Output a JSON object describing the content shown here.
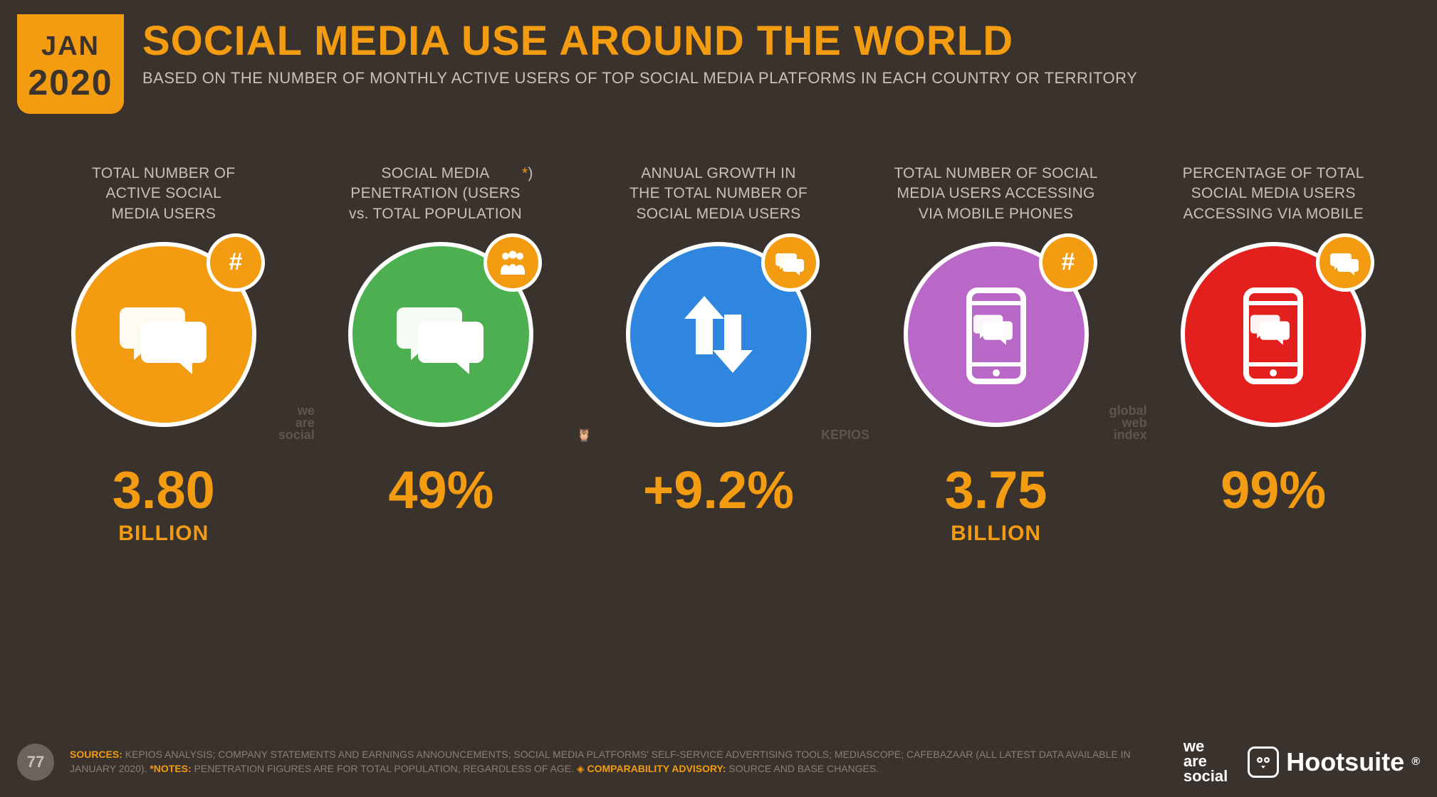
{
  "date_badge": {
    "month": "JAN",
    "year": "2020"
  },
  "header": {
    "title": "SOCIAL MEDIA USE AROUND THE WORLD",
    "subtitle": "BASED ON THE NUMBER OF MONTHLY ACTIVE USERS OF TOP SOCIAL MEDIA PLATFORMS IN EACH COUNTRY OR TERRITORY"
  },
  "colors": {
    "background": "#3a322d",
    "accent": "#f39c12",
    "text_light": "#c9c0b8",
    "circle_border": "#ffffff"
  },
  "stats": [
    {
      "label": "TOTAL NUMBER OF\nACTIVE SOCIAL\nMEDIA USERS",
      "circle_color": "#f39c12",
      "icon": "chat",
      "mini_icon": "hash",
      "watermark": "we\nare\nsocial",
      "value": "3.80",
      "unit": "BILLION"
    },
    {
      "label": "SOCIAL MEDIA\nPENETRATION (USERS\nvs. TOTAL POPULATION",
      "label_asterisk": "*",
      "label_suffix": ")",
      "circle_color": "#4caf50",
      "icon": "chat",
      "mini_icon": "people",
      "watermark": "🦉",
      "value": "49%",
      "unit": ""
    },
    {
      "label": "ANNUAL GROWTH IN\nTHE TOTAL NUMBER OF\nSOCIAL MEDIA USERS",
      "circle_color": "#2e86de",
      "icon": "arrows",
      "mini_icon": "chat-small",
      "watermark": "KEPIOS",
      "value": "+9.2%",
      "unit": ""
    },
    {
      "label": "TOTAL NUMBER OF SOCIAL\nMEDIA USERS ACCESSING\nVIA MOBILE PHONES",
      "circle_color": "#ba68c8",
      "icon": "phone",
      "mini_icon": "hash",
      "watermark": "global\nweb\nindex",
      "value": "3.75",
      "unit": "BILLION"
    },
    {
      "label": "PERCENTAGE OF TOTAL\nSOCIAL MEDIA USERS\nACCESSING VIA MOBILE",
      "circle_color": "#e4201f",
      "icon": "phone",
      "mini_icon": "chat-small",
      "watermark": "",
      "value": "99%",
      "unit": ""
    }
  ],
  "footer": {
    "page": "77",
    "sources_label": "SOURCES:",
    "sources_text": " KEPIOS ANALYSIS; COMPANY STATEMENTS AND EARNINGS ANNOUNCEMENTS; SOCIAL MEDIA PLATFORMS' SELF-SERVICE ADVERTISING TOOLS; MEDIASCOPE; CAFEBAZAAR (ALL LATEST DATA AVAILABLE IN JANUARY 2020). ",
    "notes_label": "*NOTES:",
    "notes_text": " PENETRATION FIGURES ARE FOR TOTAL POPULATION, REGARDLESS OF AGE. ",
    "advisory_label": "COMPARABILITY ADVISORY:",
    "advisory_text": " SOURCE AND BASE CHANGES.",
    "logo_was": "we\nare\nsocial",
    "logo_hootsuite": "Hootsuite",
    "reg_mark": "®"
  }
}
